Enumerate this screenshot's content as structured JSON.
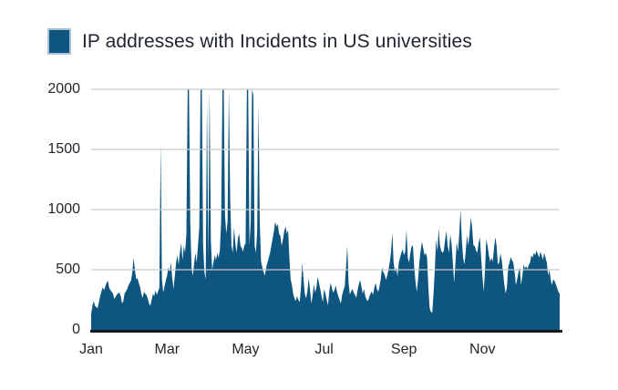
{
  "legend": {
    "label": "IP addresses with Incidents in US universities"
  },
  "colors": {
    "series_fill": "#0e567f",
    "legend_swatch_border": "#a9c3d6",
    "gridline": "#c9c9c9",
    "axis_line": "#17171c",
    "text": "#24242c"
  },
  "chart_data": {
    "type": "area",
    "title": "IP addresses with Incidents in US universities",
    "xlabel": "",
    "ylabel": "",
    "legend_position": "top-left",
    "grid": "horizontal",
    "x_unit": "day of year (daily values, Jan 1 - Dec 31)",
    "ylim": [
      0,
      2000
    ],
    "clip_max": 2000,
    "y_ticks": [
      0,
      500,
      1000,
      1500,
      2000
    ],
    "x_ticks": [
      {
        "label": "Jan",
        "day": 1
      },
      {
        "label": "Mar",
        "day": 60
      },
      {
        "label": "May",
        "day": 121
      },
      {
        "label": "Jul",
        "day": 182
      },
      {
        "label": "Sep",
        "day": 244
      },
      {
        "label": "Nov",
        "day": 305
      }
    ],
    "series": [
      {
        "name": "IP addresses with Incidents in US universities",
        "values": [
          130,
          200,
          240,
          200,
          190,
          180,
          230,
          280,
          320,
          355,
          330,
          360,
          392,
          407,
          350,
          330,
          317,
          300,
          257,
          275,
          294,
          305,
          310,
          280,
          219,
          240,
          302,
          320,
          340,
          370,
          390,
          410,
          480,
          600,
          500,
          420,
          430,
          390,
          355,
          300,
          264,
          317,
          300,
          290,
          260,
          220,
          200,
          250,
          300,
          280,
          330,
          290,
          320,
          350,
          1550,
          420,
          310,
          360,
          410,
          450,
          520,
          480,
          560,
          430,
          340,
          450,
          560,
          620,
          540,
          650,
          720,
          580,
          700,
          640,
          800,
          2000,
          2000,
          900,
          520,
          450,
          550,
          640,
          560,
          700,
          850,
          2000,
          2000,
          700,
          480,
          420,
          1900,
          600,
          2000,
          750,
          500,
          560,
          620,
          580,
          640,
          600,
          660,
          900,
          2000,
          2000,
          950,
          800,
          900,
          2000,
          1100,
          700,
          640,
          850,
          720,
          640,
          760,
          800,
          700,
          680,
          650,
          700,
          720,
          2000,
          2000,
          700,
          900,
          2000,
          1950,
          700,
          640,
          820,
          1870,
          900,
          570,
          520,
          480,
          450,
          520,
          560,
          600,
          640,
          700,
          760,
          820,
          900,
          860,
          880,
          800,
          780,
          700,
          750,
          820,
          860,
          800,
          830,
          600,
          420,
          370,
          300,
          260,
          240,
          280,
          250,
          230,
          350,
          560,
          420,
          300,
          260,
          320,
          430,
          340,
          220,
          280,
          380,
          310,
          350,
          440,
          390,
          340,
          280,
          230,
          340,
          300,
          250,
          205,
          320,
          390,
          350,
          310,
          330,
          370,
          315,
          280,
          250,
          218,
          290,
          330,
          360,
          520,
          700,
          390,
          294,
          320,
          340,
          310,
          290,
          265,
          330,
          380,
          415,
          360,
          300,
          340,
          280,
          250,
          240,
          270,
          300,
          320,
          290,
          350,
          390,
          340,
          315,
          360,
          420,
          520,
          480,
          460,
          415,
          450,
          500,
          560,
          650,
          807,
          560,
          480,
          520,
          445,
          560,
          600,
          640,
          671,
          620,
          650,
          830,
          600,
          560,
          640,
          694,
          700,
          520,
          400,
          317,
          420,
          560,
          660,
          732,
          680,
          620,
          641,
          600,
          350,
          181,
          150,
          143,
          300,
          500,
          755,
          650,
          845,
          700,
          657,
          640,
          657,
          750,
          823,
          700,
          640,
          792,
          720,
          560,
          392,
          550,
          732,
          650,
          800,
          1000,
          750,
          600,
          543,
          650,
          785,
          700,
          800,
          936,
          850,
          700,
          700,
          660,
          641,
          720,
          770,
          600,
          450,
          317,
          500,
          755,
          700,
          620,
          566,
          600,
          566,
          680,
          770,
          700,
          543,
          560,
          634,
          580,
          480,
          380,
          302,
          350,
          521,
          560,
          604,
          580,
          558,
          480,
          370,
          420,
          480,
          520,
          370,
          450,
          543,
          510,
          530,
          506,
          540,
          560,
          619,
          600,
          640,
          620,
          660,
          630,
          600,
          650,
          620,
          581,
          640,
          600,
          560,
          453,
          500,
          420,
          370,
          420,
          407,
          380,
          350,
          317,
          300
        ]
      }
    ]
  }
}
